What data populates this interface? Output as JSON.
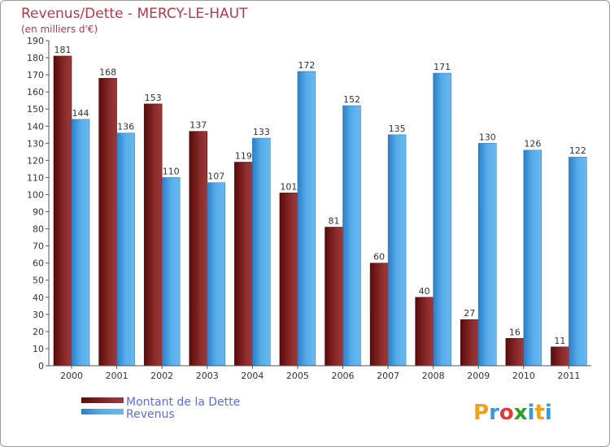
{
  "chart_data": {
    "type": "bar",
    "title": "Revenus/Dette - MERCY-LE-HAUT",
    "subtitle": "(en milliers d'€)",
    "categories": [
      "2000",
      "2001",
      "2002",
      "2003",
      "2004",
      "2005",
      "2006",
      "2007",
      "2008",
      "2009",
      "2010",
      "2011"
    ],
    "series": [
      {
        "name": "Montant de la Dette",
        "color": "#7a1a1a",
        "values": [
          181,
          168,
          153,
          137,
          119,
          101,
          81,
          60,
          40,
          27,
          16,
          11
        ]
      },
      {
        "name": "Revenus",
        "color": "#4ba0e4",
        "values": [
          144,
          136,
          110,
          107,
          133,
          172,
          152,
          135,
          171,
          130,
          126,
          122
        ]
      }
    ],
    "ylim": [
      0,
      190
    ],
    "ytick_step": 10,
    "grid": false,
    "legend_position": "bottom-left"
  },
  "logo": {
    "letters": [
      "P",
      "r",
      "o",
      "x",
      "i",
      "t",
      "i"
    ],
    "colors": [
      "#f0a020",
      "#3a9ad8",
      "#e03a3a",
      "#2aa02a",
      "#3a9ad8",
      "#f0a020",
      "#3a9ad8"
    ]
  }
}
